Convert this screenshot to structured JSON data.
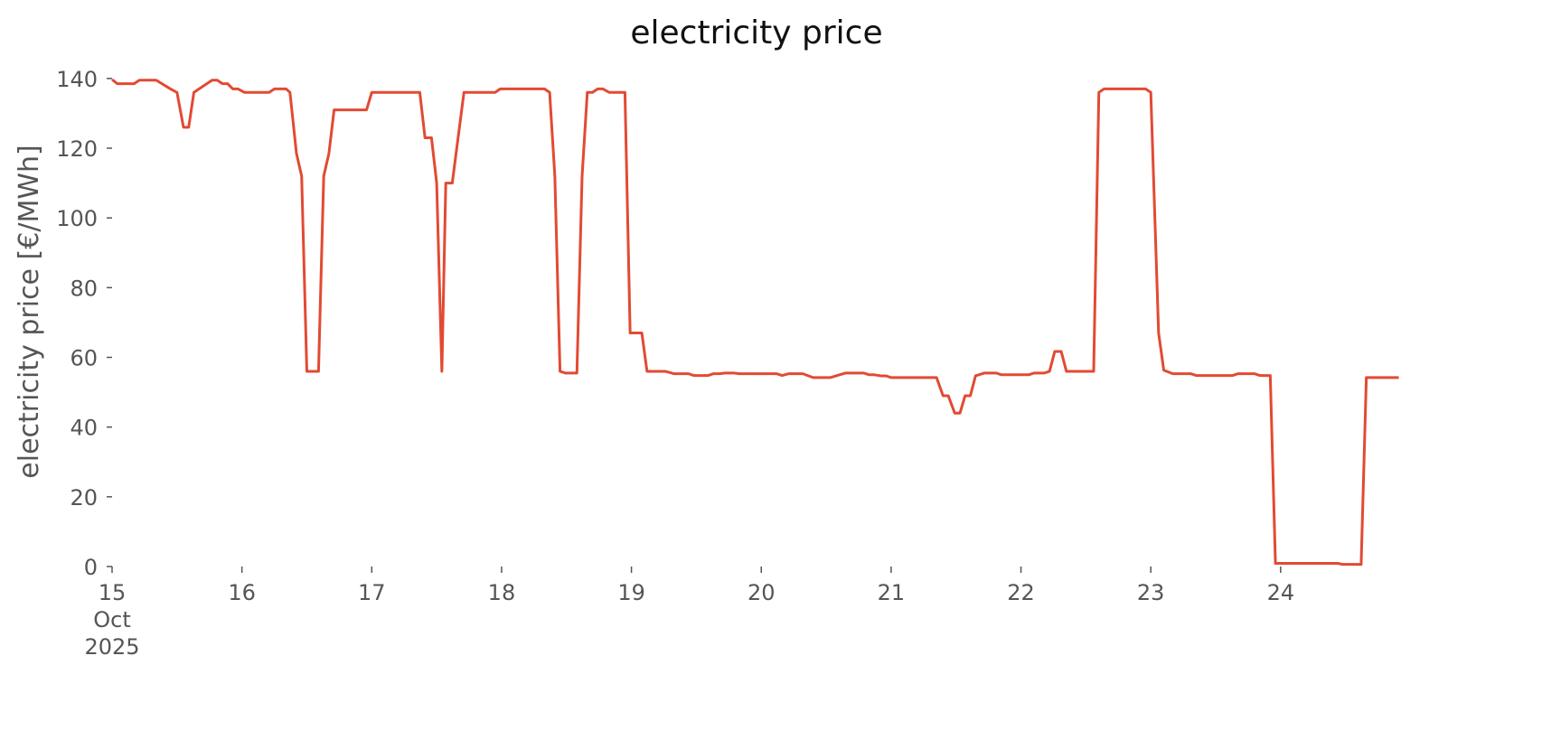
{
  "chart_data": {
    "type": "line",
    "title": "electricity price",
    "y_label": "electricity price [€/MWh]",
    "x": [
      15.0,
      15.04,
      15.17,
      15.21,
      15.34,
      15.45,
      15.5,
      15.55,
      15.59,
      15.63,
      15.77,
      15.81,
      15.85,
      15.89,
      15.93,
      15.97,
      16.02,
      16.21,
      16.25,
      16.34,
      16.37,
      16.42,
      16.46,
      16.5,
      16.59,
      16.63,
      16.67,
      16.71,
      16.96,
      17.0,
      17.37,
      17.41,
      17.46,
      17.5,
      17.54,
      17.57,
      17.62,
      17.71,
      17.95,
      17.99,
      18.33,
      18.37,
      18.41,
      18.45,
      18.49,
      18.58,
      18.62,
      18.66,
      18.7,
      18.74,
      18.78,
      18.83,
      18.95,
      18.99,
      19.08,
      19.12,
      19.26,
      19.33,
      19.44,
      19.48,
      19.59,
      19.63,
      19.68,
      19.72,
      19.79,
      19.83,
      20.12,
      20.16,
      20.21,
      20.32,
      20.4,
      20.53,
      20.65,
      20.79,
      20.83,
      20.87,
      20.92,
      20.96,
      21.0,
      21.35,
      21.4,
      21.44,
      21.49,
      21.53,
      21.57,
      21.61,
      21.65,
      21.72,
      21.81,
      21.85,
      22.06,
      22.1,
      22.18,
      22.22,
      22.26,
      22.31,
      22.35,
      22.56,
      22.6,
      22.64,
      22.96,
      23.0,
      23.06,
      23.1,
      23.17,
      23.31,
      23.35,
      23.63,
      23.67,
      23.8,
      23.84,
      23.92,
      23.96,
      24.44,
      24.48,
      24.62,
      24.66,
      24.91
    ],
    "series": [
      {
        "name": "electricity price",
        "color": "#e24a33",
        "values": [
          139.7,
          138.5,
          138.5,
          139.5,
          139.5,
          137,
          136,
          126,
          126,
          136,
          139.5,
          139.5,
          138.5,
          138.5,
          137,
          137,
          136,
          136,
          137,
          137,
          136,
          118.5,
          112,
          56,
          56,
          112,
          118.5,
          131,
          131,
          136,
          136,
          123,
          123,
          110,
          56,
          110,
          110,
          136,
          136,
          137,
          137,
          136,
          112,
          56,
          55.5,
          55.5,
          112,
          136,
          136,
          137,
          137,
          136,
          136,
          67,
          67,
          56,
          56,
          55.3,
          55.3,
          54.8,
          54.8,
          55.3,
          55.3,
          55.5,
          55.5,
          55.3,
          55.3,
          54.8,
          55.3,
          55.3,
          54.2,
          54.2,
          55.5,
          55.5,
          55,
          55,
          54.7,
          54.7,
          54.2,
          54.2,
          49,
          49,
          44,
          44,
          49,
          49,
          54.7,
          55.5,
          55.5,
          55,
          55,
          55.5,
          55.5,
          56,
          61.7,
          61.7,
          56,
          56,
          136,
          137,
          137,
          136,
          67,
          56.3,
          55.3,
          55.3,
          54.8,
          54.8,
          55.3,
          55.3,
          54.8,
          54.8,
          0.9,
          0.9,
          0.6,
          0.6,
          54.2,
          54.2
        ]
      }
    ],
    "xlim": [
      15,
      24.92
    ],
    "ylim": [
      0,
      146.7
    ],
    "xticks": [
      {
        "value": 15,
        "label": "15\nOct\n2025"
      },
      16,
      17,
      18,
      19,
      20,
      21,
      22,
      23,
      24
    ],
    "yticks": [
      0,
      20,
      40,
      60,
      80,
      100,
      120,
      140
    ],
    "grid": false
  }
}
